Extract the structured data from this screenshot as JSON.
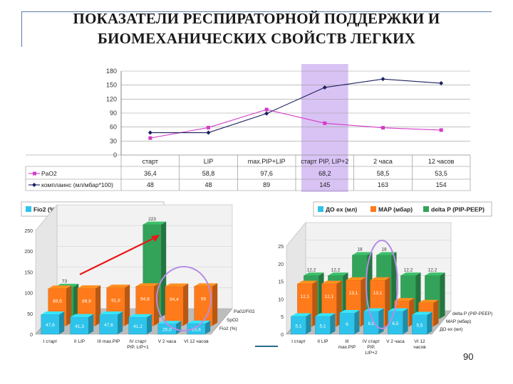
{
  "slide": {
    "title_line1": "ПОКАЗАТЕЛИ РЕСПИРАТОРНОЙ ПОДДЕРЖКИ И",
    "title_line2": "БИОМЕХАНИЧЕСКИХ СВОЙСТВ ЛЕГКИХ",
    "page_number": "90"
  },
  "colors": {
    "pao2": "#d23cc8",
    "compliance": "#1c1f5e",
    "highlight": "#d9c3f5",
    "fio2": "#2ec3ea",
    "spo2": "#ff7a1a",
    "ratio": "#33a35a",
    "mv": "#2ec3ea",
    "map": "#ff7a1a",
    "deltap": "#33a35a",
    "arrow": "#e8181a",
    "ellipse": "#b58ee6"
  },
  "chart_data": [
    {
      "type": "line",
      "yticks": [
        "180",
        "150",
        "120",
        "90",
        "60",
        "30",
        "0"
      ],
      "ylim": [
        0,
        180
      ],
      "categories": [
        "старт",
        "LIP",
        "max.PIP+LIP",
        "старт PIP, LIP+2",
        "2 часа",
        "12 часов"
      ],
      "highlight_category_index": 3,
      "grid": true,
      "legend": "table-below",
      "series": [
        {
          "name": "PaO2",
          "values": [
            36.4,
            58.8,
            97.6,
            68.2,
            58.5,
            53.5
          ],
          "labels": [
            "36,4",
            "58,8",
            "97,6",
            "68,2",
            "58,5",
            "53,5"
          ]
        },
        {
          "name": "комплаинс (мл/мбар*100)",
          "values": [
            48,
            48,
            89,
            145,
            163,
            154
          ],
          "labels": [
            "48",
            "48",
            "89",
            "145",
            "163",
            "154"
          ]
        }
      ]
    },
    {
      "type": "bar",
      "legend": "top",
      "yticks": [
        "250",
        "200",
        "150",
        "100",
        "50",
        "0"
      ],
      "ylim": [
        0,
        250
      ],
      "categories": [
        "I старт",
        "II LIP",
        "III max.PIP",
        "IV старт PIP, LIP+1",
        "V 2 часа",
        "VI 12 часов"
      ],
      "category_lines": [
        [
          "I старт"
        ],
        [
          "II LIP"
        ],
        [
          "III max.PIP"
        ],
        [
          "IV старт",
          "PIP, LIP+1"
        ],
        [
          "V 2 часа"
        ],
        [
          "VI 12 часов"
        ]
      ],
      "depth_labels": [
        "Pa02/Fi02",
        "SpO2",
        "Fio2 (%)"
      ],
      "series": [
        {
          "name": "Fio2 (%)",
          "values": [
            47.6,
            41.3,
            47.6,
            41.2,
            25.0,
            25.6
          ],
          "labels": [
            "47,6",
            "41,3",
            "47,6",
            "41,2",
            "25,0",
            "25,6"
          ]
        },
        {
          "name": "SpO2",
          "values": [
            89.5,
            89.9,
            91.8,
            94.8,
            94.4,
            95
          ],
          "labels": [
            "89,5",
            "89,9",
            "91,8",
            "94,8",
            "94,4",
            "95"
          ]
        },
        {
          "name": "Pa02/Fi02",
          "values": [
            73,
            null,
            null,
            223,
            null,
            null
          ],
          "labels": [
            "73",
            "",
            "",
            "223",
            "",
            ""
          ]
        }
      ]
    },
    {
      "type": "bar",
      "legend": "top",
      "yticks": [
        "25",
        "20",
        "15",
        "10",
        "5",
        "0"
      ],
      "ylim": [
        0,
        25
      ],
      "categories": [
        "I старт",
        "II LIP",
        "III max.PIP",
        "IV старт PIP, LIP+2",
        "V 2 часа",
        "VI 12 часов"
      ],
      "category_lines": [
        [
          "I старт"
        ],
        [
          "II LIP"
        ],
        [
          "III",
          "max.PIP"
        ],
        [
          "IV старт",
          "PIP,",
          "LIP+2"
        ],
        [
          "V 2 часа"
        ],
        [
          "VI 12",
          "часов"
        ]
      ],
      "depth_labels": [
        "delta P (PIP-PEEP)",
        "MAP (мбар)",
        "ДО ex (мл)"
      ],
      "series": [
        {
          "name": "ДО ex (мл)",
          "values": [
            5.1,
            5.1,
            6,
            6.5,
            6.5,
            5.5
          ],
          "labels": [
            "5,1",
            "5,1",
            "6",
            "6,5",
            "6,5",
            "5,5"
          ]
        },
        {
          "name": "MAP (мбар)",
          "values": [
            12.1,
            12.1,
            13.1,
            13.1,
            7.2,
            6.7
          ],
          "labels": [
            "12,1",
            "12,1",
            "13,1",
            "13,1",
            "7,2",
            "6,7"
          ]
        },
        {
          "name": "delta P (PIP-PEEP)",
          "values": [
            12.2,
            12.2,
            18,
            18,
            12.2,
            12.2
          ],
          "labels": [
            "12,2",
            "12,2",
            "18",
            "18",
            "12,2",
            "12,2"
          ]
        }
      ]
    }
  ]
}
